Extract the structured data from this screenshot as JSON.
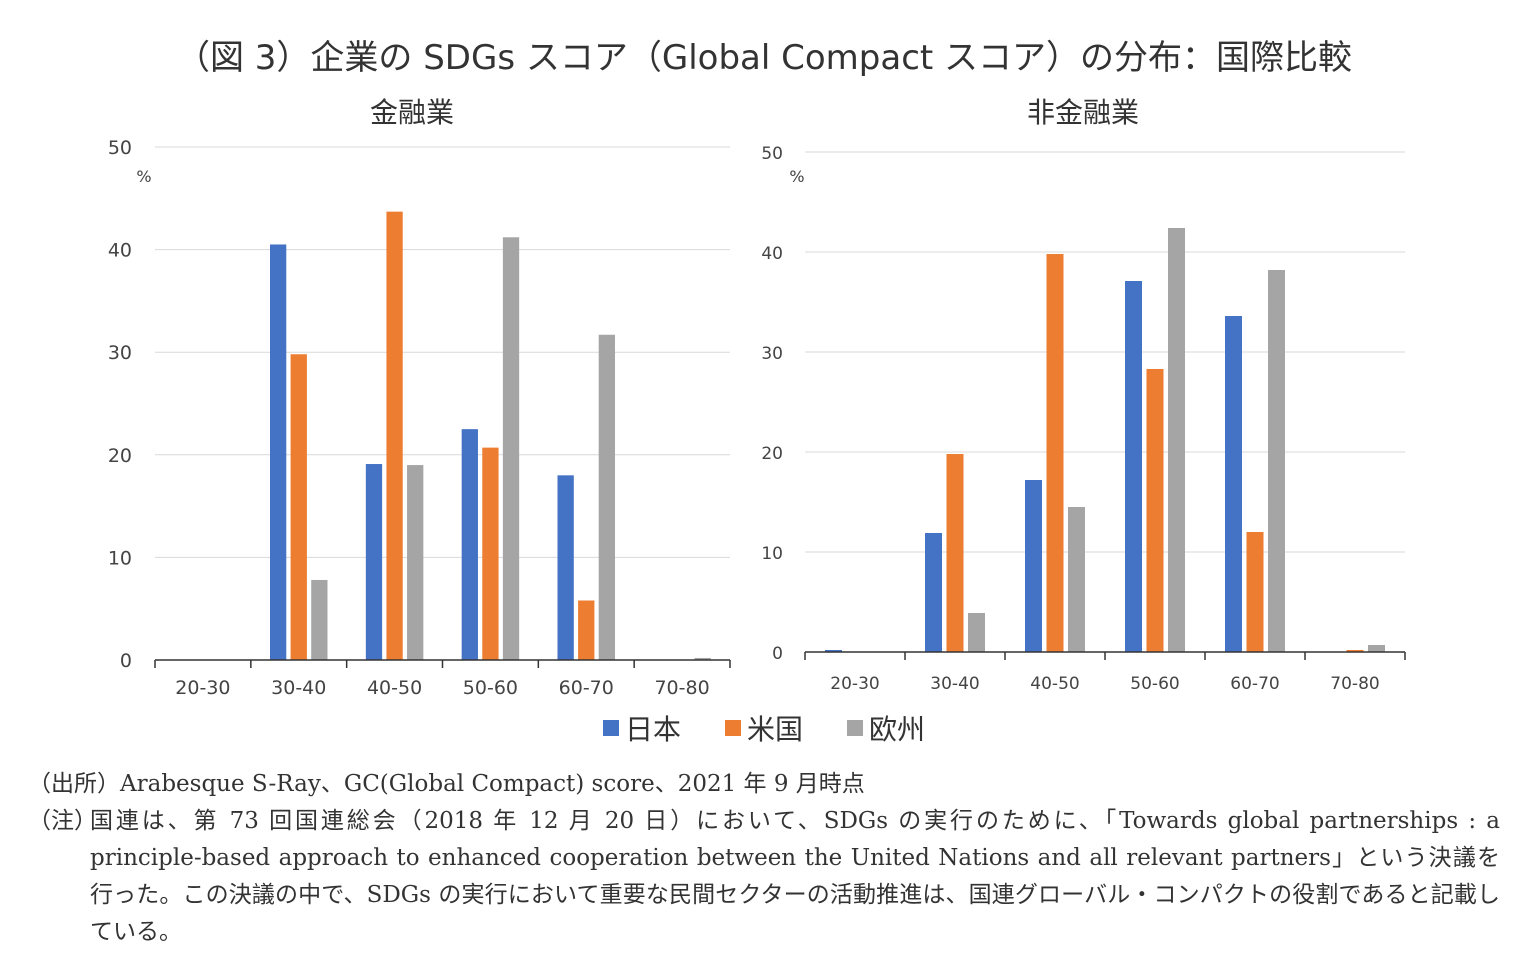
{
  "figure_title": "（図 3）企業の SDGs スコア（Global Compact スコア）の分布：国際比較",
  "legend": [
    {
      "label": "日本",
      "color": "#4472C4"
    },
    {
      "label": "米国",
      "color": "#ED7D31"
    },
    {
      "label": "欧州",
      "color": "#A5A5A5"
    }
  ],
  "chart_data": [
    {
      "type": "bar",
      "title": "金融業",
      "unit_label": "%",
      "categories": [
        "20-30",
        "30-40",
        "40-50",
        "50-60",
        "60-70",
        "70-80"
      ],
      "ylim": [
        0,
        50
      ],
      "yticks": [
        0,
        10,
        20,
        30,
        40,
        50
      ],
      "grid": true,
      "series": [
        {
          "name": "日本",
          "values": [
            0,
            40.5,
            19.1,
            22.5,
            18.0,
            0
          ]
        },
        {
          "name": "米国",
          "values": [
            0,
            29.8,
            43.7,
            20.7,
            5.8,
            0
          ]
        },
        {
          "name": "欧州",
          "values": [
            0,
            7.8,
            19.0,
            41.2,
            31.7,
            0.2
          ]
        }
      ]
    },
    {
      "type": "bar",
      "title": "非金融業",
      "unit_label": "%",
      "categories": [
        "20-30",
        "30-40",
        "40-50",
        "50-60",
        "60-70",
        "70-80"
      ],
      "ylim": [
        0,
        50
      ],
      "yticks": [
        0,
        10,
        20,
        30,
        40,
        50
      ],
      "grid": true,
      "series": [
        {
          "name": "日本",
          "values": [
            0.2,
            11.9,
            17.2,
            37.1,
            33.6,
            0
          ]
        },
        {
          "name": "米国",
          "values": [
            0,
            19.8,
            39.8,
            28.3,
            12.0,
            0.2
          ]
        },
        {
          "name": "欧州",
          "values": [
            0,
            3.9,
            14.5,
            42.4,
            38.2,
            0.7
          ]
        }
      ]
    }
  ],
  "notes": {
    "source": "（出所）Arabesque S-Ray、GC(Global Compact) score、2021 年 9 月時点",
    "note_label": "（注）",
    "note_text": "国連は、第 73 回国連総会（2018 年 12 月 20 日）において、SDGs の実行のために、「Towards global partnerships : a principle-based approach to enhanced cooperation between the United Nations and all relevant partners」という決議を行った。この決議の中で、SDGs の実行において重要な民間セクターの活動推進は、国連グローバル・コンパクトの役割であると記載している。"
  }
}
